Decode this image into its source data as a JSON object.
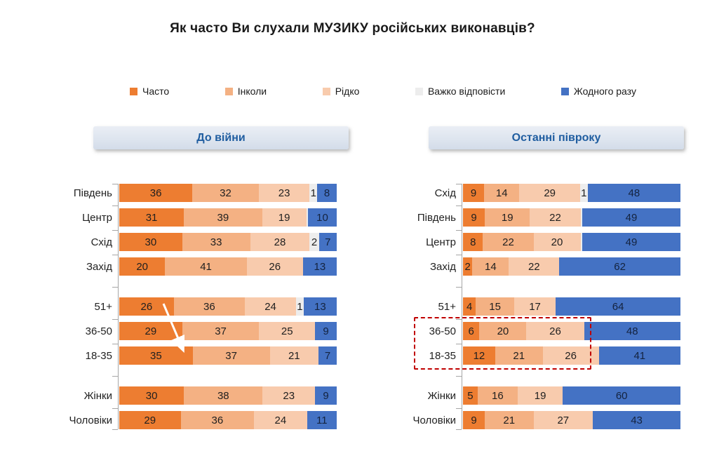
{
  "title": "Як часто Ви слухали МУЗИКУ російських виконавців?",
  "legend": {
    "items": [
      {
        "label": "Часто",
        "color": "#ED7D31"
      },
      {
        "label": "Інколи",
        "color": "#F4B183"
      },
      {
        "label": "Рідко",
        "color": "#F8CBAD"
      },
      {
        "label": "Важко відповісти",
        "color": "#EDEDED"
      },
      {
        "label": "Жодного разу",
        "color": "#4472C4"
      }
    ]
  },
  "chart_data": {
    "type": "bar",
    "orientation": "horizontal",
    "stacked": true,
    "unit": "percent",
    "value_range": [
      0,
      100
    ],
    "series_names": [
      "Часто",
      "Інколи",
      "Рідко",
      "Важко відповісти",
      "Жодного разу"
    ],
    "panels": [
      {
        "header": "До війни",
        "rows": [
          {
            "label": "Південь",
            "values": [
              36,
              32,
              23,
              1,
              8
            ],
            "labels": [
              "36",
              "32",
              "23",
              "1",
              "8"
            ]
          },
          {
            "label": "Центр",
            "values": [
              31,
              39,
              19,
              1,
              10
            ],
            "labels": [
              "31",
              "39",
              "19",
              "",
              "10"
            ]
          },
          {
            "label": "Схід",
            "values": [
              30,
              33,
              28,
              2,
              7
            ],
            "labels": [
              "30",
              "33",
              "28",
              "2",
              "7"
            ]
          },
          {
            "label": "Захід",
            "values": [
              20,
              41,
              26,
              0,
              13
            ],
            "labels": [
              "20",
              "41",
              "26",
              "",
              "13"
            ]
          },
          {
            "label": "51+",
            "values": [
              26,
              36,
              24,
              1,
              13
            ],
            "labels": [
              "26",
              "36",
              "24",
              "1",
              "13"
            ],
            "group_start": true
          },
          {
            "label": "36-50",
            "values": [
              29,
              37,
              25,
              0,
              9
            ],
            "labels": [
              "29",
              "37",
              "25",
              "",
              "9"
            ]
          },
          {
            "label": "18-35",
            "values": [
              35,
              37,
              21,
              0,
              7
            ],
            "labels": [
              "35",
              "37",
              "21",
              "",
              "7"
            ]
          },
          {
            "label": "Жінки",
            "values": [
              30,
              38,
              23,
              0,
              9
            ],
            "labels": [
              "30",
              "38",
              "23",
              "",
              "9"
            ],
            "group_start": true
          },
          {
            "label": "Чоловіки",
            "values": [
              29,
              36,
              24,
              0,
              11
            ],
            "labels": [
              "29",
              "36",
              "24",
              "",
              "11"
            ]
          }
        ]
      },
      {
        "header": "Останні півроку",
        "rows": [
          {
            "label": "Схід",
            "values": [
              9,
              14,
              29,
              1,
              48
            ],
            "labels": [
              "9",
              "14",
              "29",
              "1",
              "48"
            ]
          },
          {
            "label": "Південь",
            "values": [
              9,
              19,
              22,
              1,
              49
            ],
            "labels": [
              "9",
              "19",
              "22",
              "",
              "49"
            ]
          },
          {
            "label": "Центр",
            "values": [
              8,
              22,
              20,
              1,
              49
            ],
            "labels": [
              "8",
              "22",
              "20",
              "",
              "49"
            ]
          },
          {
            "label": "Захід",
            "values": [
              2,
              14,
              22,
              0,
              62
            ],
            "labels": [
              "2",
              "14",
              "22",
              "",
              "62"
            ]
          },
          {
            "label": "51+",
            "values": [
              4,
              15,
              17,
              0,
              64
            ],
            "labels": [
              "4",
              "15",
              "17",
              "",
              "64"
            ],
            "group_start": true
          },
          {
            "label": "36-50",
            "values": [
              6,
              20,
              26,
              0,
              48
            ],
            "labels": [
              "6",
              "20",
              "26",
              "",
              "48"
            ],
            "highlighted": true
          },
          {
            "label": "18-35",
            "values": [
              12,
              21,
              26,
              0,
              41
            ],
            "labels": [
              "12",
              "21",
              "26",
              "",
              "41"
            ],
            "highlighted": true
          },
          {
            "label": "Жінки",
            "values": [
              5,
              16,
              19,
              0,
              60
            ],
            "labels": [
              "5",
              "16",
              "19",
              "",
              "60"
            ],
            "group_start": true
          },
          {
            "label": "Чоловіки",
            "values": [
              9,
              21,
              27,
              0,
              43
            ],
            "labels": [
              "9",
              "21",
              "27",
              "",
              "43"
            ]
          }
        ]
      }
    ],
    "annotations": {
      "trend_arrow": {
        "panel": "До війни",
        "from_row": "51+",
        "to_row": "18-35",
        "color": "#FFFFFF"
      },
      "highlight_box": {
        "panel": "Останні півроку",
        "rows": [
          "36-50",
          "18-35"
        ],
        "color": "#C00000",
        "style": "dashed"
      }
    }
  }
}
